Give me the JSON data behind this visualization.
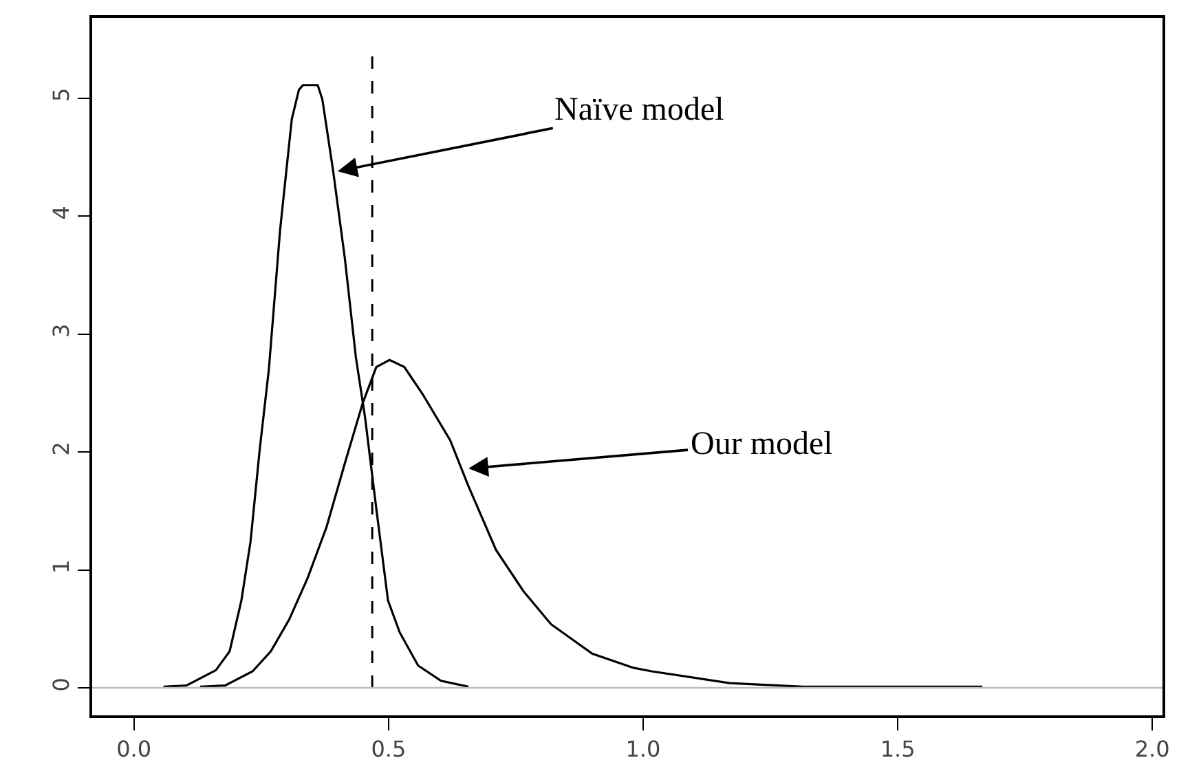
{
  "chart_data": {
    "type": "line",
    "xlim": [
      -0.082,
      2.02
    ],
    "ylim": [
      -0.233,
      5.68
    ],
    "xticks": [
      {
        "value": 0,
        "label": "0.0"
      },
      0.5,
      {
        "value": 1,
        "label": "1.0"
      },
      1.5,
      {
        "value": 2,
        "label": "2.0"
      }
    ],
    "yticks": [
      0,
      1,
      2,
      3,
      4,
      5
    ],
    "grid": false,
    "marker": "none",
    "line_style": "solid",
    "series": [
      {
        "color": "#000000",
        "x": [
          0.058,
          0.103,
          0.161,
          0.188,
          0.211,
          0.229,
          0.247,
          0.265,
          0.287,
          0.31,
          0.324,
          0.332,
          0.361,
          0.37,
          0.391,
          0.414,
          0.436,
          0.454,
          0.476,
          0.499,
          0.522,
          0.558,
          0.603,
          0.657
        ],
        "values": [
          0.01,
          0.02,
          0.15,
          0.31,
          0.74,
          1.24,
          2.02,
          2.7,
          3.88,
          4.82,
          5.07,
          5.11,
          5.11,
          4.99,
          4.39,
          3.65,
          2.8,
          2.29,
          1.52,
          0.74,
          0.47,
          0.19,
          0.06,
          0.01
        ]
      },
      {
        "color": "#000000",
        "x": [
          0.13,
          0.179,
          0.233,
          0.269,
          0.305,
          0.341,
          0.378,
          0.414,
          0.449,
          0.476,
          0.502,
          0.531,
          0.567,
          0.621,
          0.657,
          0.711,
          0.765,
          0.819,
          0.9,
          0.981,
          1.017,
          1.17,
          1.314,
          1.666
        ],
        "values": [
          0.01,
          0.02,
          0.14,
          0.31,
          0.58,
          0.93,
          1.36,
          1.9,
          2.41,
          2.72,
          2.78,
          2.72,
          2.49,
          2.1,
          1.71,
          1.17,
          0.82,
          0.54,
          0.29,
          0.17,
          0.14,
          0.04,
          0.01,
          0.01
        ]
      }
    ],
    "ref_lines": [
      {
        "axis": "x",
        "value": 0.468,
        "color": "#000000",
        "line_style": "dashed"
      },
      {
        "axis": "y",
        "value": 0,
        "color": "#bbbbbb",
        "line_style": "solid"
      }
    ],
    "annotations": [
      {
        "text": "Naïve model",
        "x": 0.4,
        "y": 4.38
      },
      {
        "text": "Our model",
        "x": 0.657,
        "y": 1.86
      }
    ]
  }
}
